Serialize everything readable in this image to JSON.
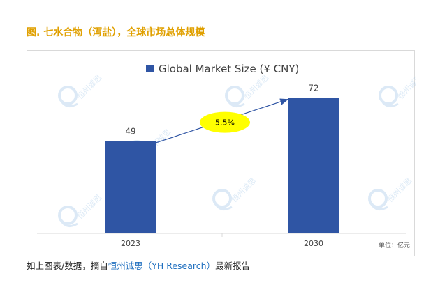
{
  "page": {
    "title": "图. 七水合物（泻盐），全球市场总体规模",
    "footnote": {
      "prefix": "如上图表/数据，摘自",
      "brand": "恒州诚思（YH Research）",
      "suffix": "最新报告"
    }
  },
  "watermark": {
    "text": "恒州诚思"
  },
  "chart_data": {
    "type": "bar",
    "categories": [
      "2023",
      "2030"
    ],
    "series": [
      {
        "name": "Global Market Size (¥ CNY)",
        "values": [
          49,
          72
        ]
      }
    ],
    "ylim": [
      0,
      80
    ],
    "unit_label": "单位：亿元",
    "annotation": {
      "label": "5.5%",
      "from": "2023",
      "to": "2030"
    },
    "legend_position": "top",
    "grid": false,
    "colors": {
      "bar": "#2f55a4",
      "annotation": "#ffff00",
      "arrow": "#2f55a4"
    }
  }
}
